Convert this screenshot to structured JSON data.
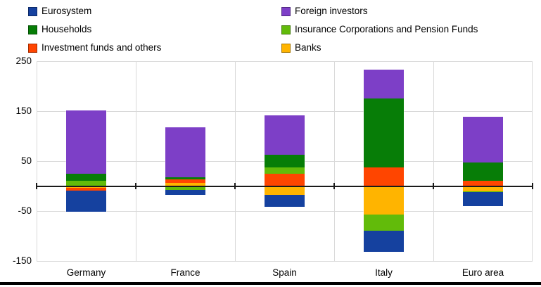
{
  "legend": {
    "items": [
      {
        "label": "Eurosystem",
        "series": "Eurosystem"
      },
      {
        "label": "Foreign investors",
        "series": "Foreign investors"
      },
      {
        "label": "Households",
        "series": "Households"
      },
      {
        "label": "Insurance Corporations and Pension Funds",
        "series": "Insurance Corporations and Pension Funds"
      },
      {
        "label": "Investment funds and others",
        "series": "Investment funds and others"
      },
      {
        "label": "Banks",
        "series": "Banks"
      }
    ]
  },
  "chart_data": {
    "type": "bar",
    "stacked": true,
    "title": "",
    "xlabel": "",
    "ylabel": "",
    "categories": [
      "Germany",
      "France",
      "Spain",
      "Italy",
      "Euro area"
    ],
    "series": [
      {
        "name": "Eurosystem",
        "color": "#15419F",
        "values": [
          -42,
          -10,
          -23,
          -42,
          -28
        ]
      },
      {
        "name": "Foreign investors",
        "color": "#7D3FC7",
        "values": [
          128,
          101,
          78,
          57,
          92
        ]
      },
      {
        "name": "Households",
        "color": "#077D07",
        "values": [
          14,
          4,
          26,
          139,
          36
        ]
      },
      {
        "name": "Insurance Corporations and Pension Funds",
        "color": "#62BB0A",
        "values": [
          10,
          -8,
          12,
          -33,
          -1.5
        ]
      },
      {
        "name": "Investment funds and others",
        "color": "#FF4500",
        "values": [
          -5,
          6,
          25,
          37,
          11
        ]
      },
      {
        "name": "Banks",
        "color": "#FFB400",
        "values": [
          -4,
          7,
          -18,
          -57,
          -10
        ]
      }
    ],
    "y_ticks": [
      250,
      150,
      50,
      -50,
      -150
    ],
    "ylim": [
      -150,
      250
    ],
    "stack_order_from_axis": [
      "Banks",
      "Investment funds and others",
      "Insurance Corporations and Pension Funds",
      "Households",
      "Foreign investors",
      "Eurosystem"
    ],
    "legend_position": "top",
    "gridlines": true,
    "zero_line": true,
    "grid_color": "#d9d9d9",
    "zero_line_color": "#1a1a1a"
  }
}
